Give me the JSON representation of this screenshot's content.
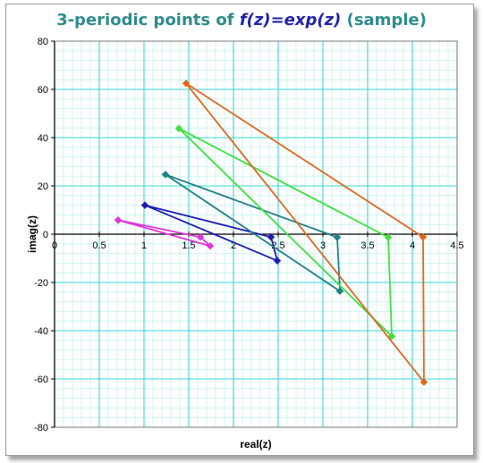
{
  "chart_data": {
    "type": "scatter",
    "title": {
      "prefix": "3-periodic points of ",
      "function": "f(z)=exp(z)",
      "suffix": " (sample)"
    },
    "xlabel": "real(z)",
    "ylabel": "imag(z)",
    "xlim": [
      0,
      4.5
    ],
    "ylim": [
      -80,
      80
    ],
    "x_ticks": [
      0,
      0.5,
      1,
      1.5,
      2,
      2.5,
      3,
      3.5,
      4,
      4.5
    ],
    "x_tick_labels": [
      "0",
      "0.5",
      "1",
      "1.5",
      "2",
      "2.5",
      "3",
      "3.5",
      "4",
      "4.5"
    ],
    "y_ticks": [
      80,
      60,
      40,
      20,
      0,
      -20,
      -40,
      -60,
      -80
    ],
    "y_tick_labels": [
      "80",
      "60",
      "40",
      "20",
      "0",
      "-20",
      "-40",
      "-60",
      "-80"
    ],
    "grid": true,
    "legend": "none",
    "series": [
      {
        "color": "#e034d8",
        "marker": "diamond",
        "closed": true,
        "points": [
          [
            0.71,
            5.8
          ],
          [
            1.74,
            -4.9
          ],
          [
            1.63,
            -1.2
          ]
        ]
      },
      {
        "color": "#1c1cb0",
        "marker": "diamond",
        "closed": true,
        "points": [
          [
            1.01,
            12.0
          ],
          [
            2.42,
            -1.2
          ],
          [
            2.49,
            -11.0
          ]
        ]
      },
      {
        "color": "#1f7f86",
        "marker": "diamond",
        "closed": true,
        "points": [
          [
            1.24,
            24.7
          ],
          [
            3.16,
            -1.3
          ],
          [
            3.19,
            -23.6
          ]
        ]
      },
      {
        "color": "#3ee03e",
        "marker": "diamond",
        "closed": true,
        "points": [
          [
            1.39,
            43.8
          ],
          [
            3.73,
            -1.3
          ],
          [
            3.77,
            -42.3
          ]
        ]
      },
      {
        "color": "#e0661c",
        "marker": "diamond",
        "closed": true,
        "points": [
          [
            1.47,
            62.5
          ],
          [
            4.12,
            -1.2
          ],
          [
            4.13,
            -61.3
          ]
        ]
      }
    ]
  }
}
